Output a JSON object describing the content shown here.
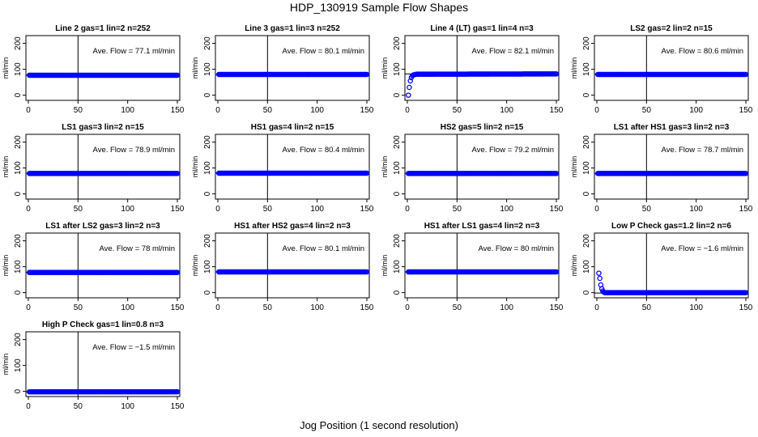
{
  "figure": {
    "title": "HDP_130919  Sample Flow Shapes",
    "xlabel": "Jog Position (1 second resolution)"
  },
  "colors": {
    "points": "#0000ff",
    "axes": "#000000"
  },
  "chart_data": [
    {
      "type": "scatter",
      "title": "Line 2 gas=1 lin=2 n=252",
      "annotation": "Ave. Flow =  77.1  ml/min",
      "ylabel": "ml/min",
      "xlim": [
        0,
        150
      ],
      "ylim": [
        -20,
        230
      ],
      "xticks": [
        0,
        50,
        100,
        150
      ],
      "yticks": [
        0,
        100,
        200
      ],
      "vline": 50,
      "hline": 77.1,
      "points": [
        [
          1,
          77
        ],
        [
          150,
          77
        ]
      ]
    },
    {
      "type": "scatter",
      "title": "Line 3 gas=1 lin=3 n=252",
      "annotation": "Ave. Flow =  80.1  ml/min",
      "ylabel": "ml/min",
      "xlim": [
        0,
        150
      ],
      "ylim": [
        -20,
        230
      ],
      "xticks": [
        0,
        50,
        100,
        150
      ],
      "yticks": [
        0,
        100,
        200
      ],
      "vline": 50,
      "hline": 80.1,
      "points": [
        [
          1,
          80
        ],
        [
          150,
          80
        ]
      ]
    },
    {
      "type": "scatter",
      "title": "Line 4 (LT) gas=1 lin=4 n=3",
      "annotation": "Ave. Flow =  82.1  ml/min",
      "ylabel": "ml/min",
      "xlim": [
        0,
        150
      ],
      "ylim": [
        -20,
        230
      ],
      "xticks": [
        0,
        50,
        100,
        150
      ],
      "yticks": [
        0,
        100,
        200
      ],
      "vline": 50,
      "hline": 82.1,
      "points": [
        [
          1,
          0
        ],
        [
          2,
          30
        ],
        [
          3,
          55
        ],
        [
          4,
          68
        ],
        [
          5,
          75
        ],
        [
          6,
          78
        ],
        [
          8,
          80
        ],
        [
          10,
          81
        ],
        [
          150,
          82
        ]
      ]
    },
    {
      "type": "scatter",
      "title": "LS2 gas=2 lin=2 n=15",
      "annotation": "Ave. Flow =  80.6  ml/min",
      "ylabel": "ml/min",
      "xlim": [
        0,
        150
      ],
      "ylim": [
        -20,
        230
      ],
      "xticks": [
        0,
        50,
        100,
        150
      ],
      "yticks": [
        0,
        100,
        200
      ],
      "vline": 50,
      "hline": 80.6,
      "points": [
        [
          1,
          80
        ],
        [
          150,
          80
        ]
      ]
    },
    {
      "type": "scatter",
      "title": "LS1 gas=3 lin=2 n=15",
      "annotation": "Ave. Flow =  78.9  ml/min",
      "ylabel": "ml/min",
      "xlim": [
        0,
        150
      ],
      "ylim": [
        -20,
        230
      ],
      "xticks": [
        0,
        50,
        100,
        150
      ],
      "yticks": [
        0,
        100,
        200
      ],
      "vline": 50,
      "hline": 78.9,
      "points": [
        [
          1,
          79
        ],
        [
          150,
          79
        ]
      ]
    },
    {
      "type": "scatter",
      "title": "HS1 gas=4 lin=2 n=15",
      "annotation": "Ave. Flow =  80.4  ml/min",
      "ylabel": "ml/min",
      "xlim": [
        0,
        150
      ],
      "ylim": [
        -20,
        230
      ],
      "xticks": [
        0,
        50,
        100,
        150
      ],
      "yticks": [
        0,
        100,
        200
      ],
      "vline": 50,
      "hline": 80.4,
      "points": [
        [
          1,
          80
        ],
        [
          150,
          80
        ]
      ]
    },
    {
      "type": "scatter",
      "title": "HS2 gas=5 lin=2 n=15",
      "annotation": "Ave. Flow =  79.2  ml/min",
      "ylabel": "ml/min",
      "xlim": [
        0,
        150
      ],
      "ylim": [
        -20,
        230
      ],
      "xticks": [
        0,
        50,
        100,
        150
      ],
      "yticks": [
        0,
        100,
        200
      ],
      "vline": 50,
      "hline": 79.2,
      "points": [
        [
          1,
          79
        ],
        [
          150,
          79
        ]
      ]
    },
    {
      "type": "scatter",
      "title": "LS1 after HS1 gas=3 lin=2 n=3",
      "annotation": "Ave. Flow =  78.7  ml/min",
      "ylabel": "ml/min",
      "xlim": [
        0,
        150
      ],
      "ylim": [
        -20,
        230
      ],
      "xticks": [
        0,
        50,
        100,
        150
      ],
      "yticks": [
        0,
        100,
        200
      ],
      "vline": 50,
      "hline": 78.7,
      "points": [
        [
          1,
          79
        ],
        [
          150,
          79
        ]
      ]
    },
    {
      "type": "scatter",
      "title": "LS1 after LS2 gas=3 lin=2 n=3",
      "annotation": "Ave. Flow =  78  ml/min",
      "ylabel": "ml/min",
      "xlim": [
        0,
        150
      ],
      "ylim": [
        -20,
        230
      ],
      "xticks": [
        0,
        50,
        100,
        150
      ],
      "yticks": [
        0,
        100,
        200
      ],
      "vline": 50,
      "hline": 78,
      "points": [
        [
          1,
          78
        ],
        [
          150,
          78
        ]
      ]
    },
    {
      "type": "scatter",
      "title": "HS1 after HS2 gas=4 lin=2 n=3",
      "annotation": "Ave. Flow =  80.1  ml/min",
      "ylabel": "ml/min",
      "xlim": [
        0,
        150
      ],
      "ylim": [
        -20,
        230
      ],
      "xticks": [
        0,
        50,
        100,
        150
      ],
      "yticks": [
        0,
        100,
        200
      ],
      "vline": 50,
      "hline": 80.1,
      "points": [
        [
          1,
          80
        ],
        [
          150,
          80
        ]
      ]
    },
    {
      "type": "scatter",
      "title": "HS1 after LS1 gas=4 lin=2 n=3",
      "annotation": "Ave. Flow =  80  ml/min",
      "ylabel": "ml/min",
      "xlim": [
        0,
        150
      ],
      "ylim": [
        -20,
        230
      ],
      "xticks": [
        0,
        50,
        100,
        150
      ],
      "yticks": [
        0,
        100,
        200
      ],
      "vline": 50,
      "hline": 80,
      "points": [
        [
          1,
          80
        ],
        [
          150,
          80
        ]
      ]
    },
    {
      "type": "scatter",
      "title": "Low P Check gas=1.2 lin=2 n=6",
      "annotation": "Ave. Flow =  −1.6  ml/min",
      "ylabel": "ml/min",
      "xlim": [
        0,
        150
      ],
      "ylim": [
        -20,
        230
      ],
      "xticks": [
        0,
        50,
        100,
        150
      ],
      "yticks": [
        0,
        100,
        200
      ],
      "vline": 50,
      "hline": -1.6,
      "points": [
        [
          2,
          75
        ],
        [
          3,
          55
        ],
        [
          4,
          30
        ],
        [
          5,
          15
        ],
        [
          6,
          6
        ],
        [
          7,
          2
        ],
        [
          8,
          0
        ],
        [
          150,
          0
        ]
      ]
    },
    {
      "type": "scatter",
      "title": "High P Check gas=1 lin=0.8 n=3",
      "annotation": "Ave. Flow =  −1.5  ml/min",
      "ylabel": "ml/min",
      "xlim": [
        0,
        150
      ],
      "ylim": [
        -20,
        230
      ],
      "xticks": [
        0,
        50,
        100,
        150
      ],
      "yticks": [
        0,
        100,
        200
      ],
      "vline": 50,
      "hline": -1.5,
      "points": [
        [
          1,
          -1.5
        ],
        [
          150,
          -1.5
        ]
      ]
    }
  ]
}
